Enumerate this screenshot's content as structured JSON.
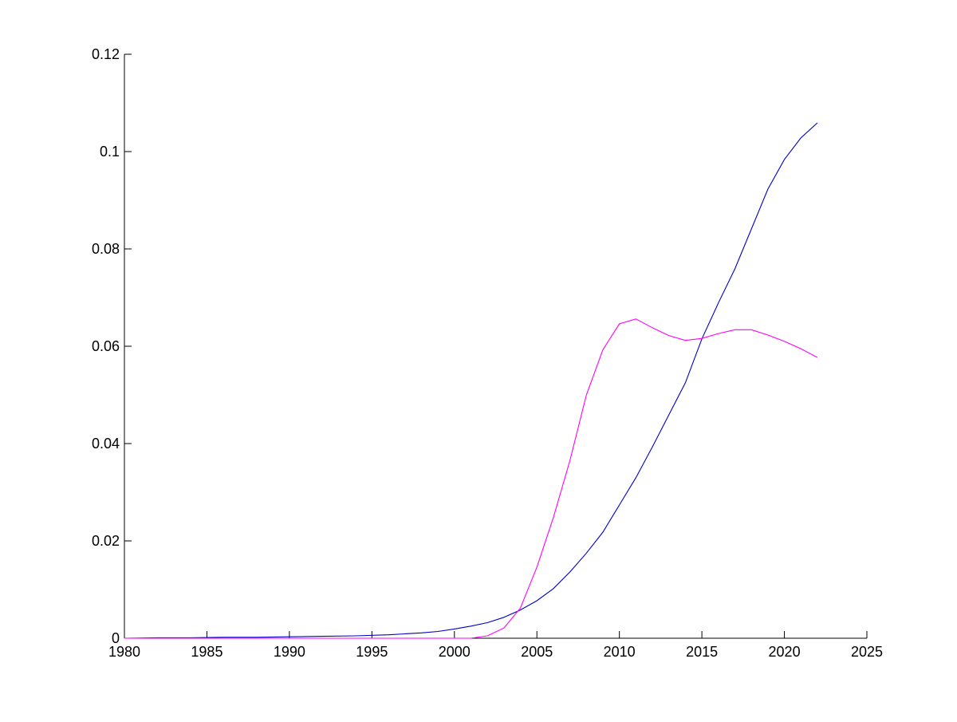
{
  "chart_data": {
    "type": "line",
    "title": "",
    "xlabel": "",
    "ylabel": "",
    "xlim": [
      1980,
      2025
    ],
    "ylim": [
      0,
      0.12
    ],
    "grid": false,
    "legend": null,
    "xticks": [
      "1980",
      "1985",
      "1990",
      "1995",
      "2000",
      "2005",
      "2010",
      "2015",
      "2020",
      "2025"
    ],
    "yticks": [
      "0",
      "0.02",
      "0.04",
      "0.06",
      "0.08",
      "0.1",
      "0.12"
    ],
    "series": [
      {
        "color": "#0000cc",
        "x": [
          1980,
          1982,
          1984,
          1986,
          1988,
          1990,
          1992,
          1994,
          1996,
          1997,
          1998,
          1999,
          2000,
          2001,
          2002,
          2003,
          2004,
          2005,
          2006,
          2007,
          2008,
          2009,
          2010,
          2011,
          2012,
          2013,
          2014,
          2015,
          2016,
          2017,
          2018,
          2019,
          2020,
          2021,
          2022
        ],
        "y": [
          0.0,
          0.0001,
          0.0001,
          0.0002,
          0.0002,
          0.0003,
          0.0004,
          0.0005,
          0.0007,
          0.0009,
          0.0011,
          0.0014,
          0.0019,
          0.0025,
          0.0032,
          0.0043,
          0.0058,
          0.0077,
          0.0102,
          0.0136,
          0.0175,
          0.0218,
          0.0274,
          0.033,
          0.0393,
          0.0459,
          0.0525,
          0.0615,
          0.0689,
          0.0759,
          0.0841,
          0.0923,
          0.0984,
          0.1028,
          0.1059
        ]
      },
      {
        "color": "#ff00ff",
        "x": [
          1980,
          1990,
          2000,
          2001,
          2002,
          2003,
          2004,
          2005,
          2006,
          2007,
          2008,
          2009,
          2010,
          2011,
          2012,
          2013,
          2014,
          2015,
          2016,
          2017,
          2018,
          2019,
          2020,
          2021,
          2022
        ],
        "y": [
          0,
          0,
          0,
          0,
          0.0005,
          0.0021,
          0.0062,
          0.0146,
          0.0248,
          0.0365,
          0.05,
          0.0593,
          0.0646,
          0.0656,
          0.0638,
          0.0622,
          0.0612,
          0.0616,
          0.0626,
          0.0634,
          0.0634,
          0.0623,
          0.061,
          0.0595,
          0.0577
        ]
      }
    ]
  }
}
